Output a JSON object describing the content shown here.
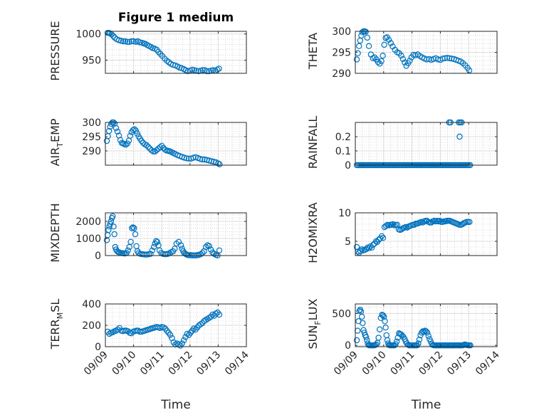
{
  "figure": {
    "title": "Figure 1 medium",
    "xlabel": "Time",
    "xtick_labels": [
      "09/09",
      "09/10",
      "09/11",
      "09/12",
      "09/13",
      "09/14"
    ],
    "marker_color": "#0072BD",
    "grid": "on (major and minor)"
  },
  "chart_data": [
    {
      "type": "scatter",
      "ylabel": "PRESSURE",
      "xlim": [
        0,
        5
      ],
      "ylim": [
        925,
        1005
      ],
      "yticks": [
        950,
        1000
      ],
      "ytick_labels": [
        "950",
        "1000"
      ],
      "x": [
        0.08,
        0.12,
        0.17,
        0.22,
        0.28,
        0.33,
        0.4,
        0.48,
        0.56,
        0.63,
        0.7,
        0.78,
        0.85,
        0.93,
        1.0,
        1.08,
        1.15,
        1.22,
        1.3,
        1.36,
        1.42,
        1.48,
        1.55,
        1.62,
        1.68,
        1.75,
        1.82,
        1.88,
        1.95,
        2.02,
        2.1,
        2.18,
        2.25,
        2.32,
        2.4,
        2.48,
        2.56,
        2.63,
        2.7,
        2.78,
        2.85,
        2.92,
        3.0,
        3.08,
        3.15,
        3.22,
        3.3,
        3.38,
        3.45,
        3.52,
        3.6,
        3.68,
        3.75,
        3.82,
        3.9,
        3.97,
        4.03
      ],
      "y": [
        1002,
        1002,
        1001,
        999,
        996,
        993,
        990,
        988,
        987,
        986,
        986,
        985,
        985,
        986,
        986,
        985,
        986,
        984,
        983,
        982,
        981,
        979,
        977,
        975,
        973,
        972,
        970,
        966,
        962,
        958,
        953,
        949,
        946,
        943,
        941,
        940,
        938,
        936,
        935,
        933,
        931,
        929,
        930,
        932,
        931,
        930,
        929,
        930,
        931,
        931,
        929,
        929,
        930,
        931,
        930,
        932,
        934
      ]
    },
    {
      "type": "scatter",
      "ylabel": "THETA",
      "xlim": [
        0,
        5
      ],
      "ylim": [
        290,
        300
      ],
      "yticks": [
        290,
        295,
        300
      ],
      "ytick_labels": [
        "290",
        "295",
        "300"
      ],
      "x": [
        0.05,
        0.09,
        0.13,
        0.17,
        0.21,
        0.25,
        0.29,
        0.33,
        0.37,
        0.42,
        0.48,
        0.55,
        0.62,
        0.68,
        0.74,
        0.8,
        0.86,
        0.92,
        0.97,
        1.02,
        1.07,
        1.12,
        1.18,
        1.25,
        1.32,
        1.4,
        1.48,
        1.55,
        1.62,
        1.68,
        1.74,
        1.8,
        1.86,
        1.92,
        1.98,
        2.05,
        2.12,
        2.2,
        2.28,
        2.36,
        2.44,
        2.52,
        2.6,
        2.68,
        2.76,
        2.84,
        2.92,
        3.0,
        3.08,
        3.16,
        3.24,
        3.32,
        3.4,
        3.48,
        3.56,
        3.64,
        3.72,
        3.8,
        3.88,
        3.96,
        4.02
      ],
      "y": [
        293.3,
        294.8,
        296.5,
        297.8,
        299,
        299.8,
        300,
        300,
        299.9,
        298.5,
        296.5,
        294.5,
        293.6,
        293.8,
        293.3,
        292.7,
        292.3,
        292.9,
        294.2,
        296.8,
        298.4,
        298.6,
        298.0,
        297.2,
        296.4,
        295.6,
        295.0,
        294.8,
        294.2,
        293.4,
        292.6,
        291.8,
        292.4,
        293.0,
        293.8,
        294.4,
        294.3,
        294.5,
        294.1,
        293.8,
        293.5,
        293.3,
        293.4,
        293.2,
        293.4,
        293.6,
        293.3,
        293.2,
        293.5,
        293.6,
        293.7,
        293.6,
        293.5,
        293.4,
        293.2,
        293.0,
        292.8,
        292.4,
        291.9,
        291.3,
        290.7
      ]
    },
    {
      "type": "scatter",
      "ylabel": "AIR_TEMP",
      "xlim": [
        0,
        5
      ],
      "ylim": [
        285,
        300
      ],
      "yticks": [
        290,
        295,
        300
      ],
      "ytick_labels": [
        "290",
        "295",
        "300"
      ],
      "x": [
        0.05,
        0.09,
        0.13,
        0.17,
        0.21,
        0.25,
        0.29,
        0.33,
        0.38,
        0.43,
        0.48,
        0.53,
        0.58,
        0.63,
        0.68,
        0.73,
        0.78,
        0.83,
        0.88,
        0.93,
        0.98,
        1.03,
        1.08,
        1.13,
        1.18,
        1.23,
        1.28,
        1.34,
        1.4,
        1.46,
        1.52,
        1.58,
        1.64,
        1.7,
        1.76,
        1.82,
        1.88,
        1.94,
        2.0,
        2.06,
        2.12,
        2.18,
        2.24,
        2.3,
        2.36,
        2.42,
        2.48,
        2.56,
        2.64,
        2.72,
        2.8,
        2.88,
        2.96,
        3.04,
        3.12,
        3.2,
        3.28,
        3.36,
        3.44,
        3.52,
        3.6,
        3.68,
        3.76,
        3.84,
        3.92,
        4.0,
        4.05
      ],
      "y": [
        293.5,
        295.2,
        297,
        298.5,
        299.5,
        300,
        300,
        299.6,
        298,
        296.8,
        295.4,
        293.8,
        292.8,
        292.6,
        292.3,
        292.2,
        292.6,
        293.6,
        295.3,
        296.6,
        297.3,
        297.6,
        297.1,
        296.1,
        295.1,
        294.3,
        293.5,
        292.8,
        292.3,
        292.0,
        291.4,
        290.8,
        290.2,
        289.8,
        289.8,
        290.3,
        290.8,
        291.3,
        291.8,
        291.0,
        290.4,
        290.1,
        290.0,
        289.8,
        289.5,
        289.2,
        288.9,
        288.5,
        288.2,
        287.9,
        287.6,
        287.4,
        287.3,
        287.3,
        287.6,
        287.8,
        287.5,
        287.2,
        287.0,
        287.0,
        286.8,
        286.6,
        286.4,
        286.2,
        286.0,
        285.6,
        285.3
      ]
    },
    {
      "type": "scatter",
      "ylabel": "RAINFALL",
      "xlim": [
        0,
        5
      ],
      "ylim": [
        0,
        0.3
      ],
      "yticks": [
        0,
        0.1,
        0.2
      ],
      "ytick_labels": [
        "0",
        "0.1",
        "0.2"
      ],
      "x": [
        0.05,
        0.1,
        0.15,
        0.2,
        0.25,
        0.3,
        0.35,
        0.4,
        0.45,
        0.5,
        0.55,
        0.6,
        0.65,
        0.7,
        0.75,
        0.8,
        0.85,
        0.9,
        0.95,
        1.0,
        1.05,
        1.1,
        1.15,
        1.2,
        1.25,
        1.3,
        1.35,
        1.4,
        1.45,
        1.5,
        1.55,
        1.6,
        1.65,
        1.7,
        1.75,
        1.8,
        1.85,
        1.9,
        1.95,
        2.0,
        2.05,
        2.1,
        2.15,
        2.2,
        2.25,
        2.3,
        2.35,
        2.4,
        2.45,
        2.5,
        2.55,
        2.6,
        2.65,
        2.7,
        2.75,
        2.8,
        2.85,
        2.9,
        2.95,
        3.0,
        3.05,
        3.1,
        3.15,
        3.2,
        3.25,
        3.3,
        3.35,
        3.4,
        3.45,
        3.5,
        3.55,
        3.6,
        3.65,
        3.7,
        3.75,
        3.8,
        3.85,
        3.9,
        3.95,
        4.0,
        4.05,
        3.31,
        3.36,
        3.65,
        3.7,
        3.75,
        3.68
      ],
      "y": [
        0,
        0,
        0,
        0,
        0,
        0,
        0,
        0,
        0,
        0,
        0,
        0,
        0,
        0,
        0,
        0,
        0,
        0,
        0,
        0,
        0,
        0,
        0,
        0,
        0,
        0,
        0,
        0,
        0,
        0,
        0,
        0,
        0,
        0,
        0,
        0,
        0,
        0,
        0,
        0,
        0,
        0,
        0,
        0,
        0,
        0,
        0,
        0,
        0,
        0,
        0,
        0,
        0,
        0,
        0,
        0,
        0,
        0,
        0,
        0,
        0,
        0,
        0,
        0,
        0,
        0,
        0,
        0,
        0,
        0,
        0,
        0,
        0,
        0,
        0,
        0,
        0,
        0,
        0,
        0,
        0,
        0.3,
        0.3,
        0.3,
        0.3,
        0.3,
        0.2
      ]
    },
    {
      "type": "scatter",
      "ylabel": "MIXDEPTH",
      "xlim": [
        0,
        5
      ],
      "ylim": [
        0,
        2500
      ],
      "yticks": [
        0,
        1000,
        2000
      ],
      "ytick_labels": [
        "0",
        "1000",
        "2000"
      ],
      "x": [
        0.05,
        0.08,
        0.11,
        0.14,
        0.17,
        0.2,
        0.23,
        0.26,
        0.29,
        0.32,
        0.35,
        0.38,
        0.42,
        0.46,
        0.5,
        0.55,
        0.6,
        0.65,
        0.7,
        0.75,
        0.8,
        0.85,
        0.9,
        0.94,
        0.98,
        1.02,
        1.06,
        1.1,
        1.14,
        1.18,
        1.24,
        1.3,
        1.36,
        1.42,
        1.48,
        1.54,
        1.6,
        1.66,
        1.72,
        1.76,
        1.8,
        1.84,
        1.88,
        1.92,
        1.98,
        2.04,
        2.1,
        2.16,
        2.22,
        2.28,
        2.34,
        2.4,
        2.46,
        2.52,
        2.6,
        2.68,
        2.72,
        2.76,
        2.8,
        2.84,
        2.88,
        2.92,
        2.96,
        3.02,
        3.08,
        3.14,
        3.2,
        3.26,
        3.32,
        3.38,
        3.44,
        3.5,
        3.56,
        3.62,
        3.68,
        3.74,
        3.8,
        3.86,
        3.92,
        3.98,
        4.04
      ],
      "y": [
        900,
        1200,
        1500,
        1700,
        1850,
        2000,
        2200,
        2300,
        1700,
        1250,
        500,
        350,
        250,
        200,
        180,
        150,
        140,
        130,
        120,
        150,
        300,
        500,
        800,
        1600,
        1650,
        1600,
        1250,
        550,
        250,
        150,
        100,
        80,
        70,
        60,
        60,
        80,
        100,
        300,
        500,
        700,
        850,
        800,
        600,
        300,
        150,
        100,
        80,
        80,
        100,
        150,
        200,
        250,
        400,
        700,
        800,
        600,
        400,
        250,
        150,
        100,
        60,
        30,
        20,
        20,
        10,
        10,
        10,
        20,
        40,
        80,
        150,
        250,
        500,
        600,
        550,
        350,
        180,
        100,
        40,
        10,
        300
      ]
    },
    {
      "type": "scatter",
      "ylabel": "H2OMIXRA",
      "xlim": [
        0,
        5
      ],
      "ylim": [
        2.5,
        10
      ],
      "yticks": [
        5,
        10
      ],
      "ytick_labels": [
        "5",
        "10"
      ],
      "x": [
        0.05,
        0.09,
        0.13,
        0.18,
        0.23,
        0.28,
        0.33,
        0.38,
        0.43,
        0.48,
        0.53,
        0.58,
        0.63,
        0.68,
        0.73,
        0.78,
        0.83,
        0.88,
        0.93,
        0.98,
        1.03,
        1.08,
        1.13,
        1.18,
        1.23,
        1.28,
        1.33,
        1.38,
        1.43,
        1.48,
        1.53,
        1.58,
        1.63,
        1.68,
        1.73,
        1.78,
        1.83,
        1.88,
        1.93,
        1.98,
        2.03,
        2.08,
        2.13,
        2.18,
        2.23,
        2.28,
        2.33,
        2.38,
        2.43,
        2.48,
        2.53,
        2.58,
        2.63,
        2.68,
        2.73,
        2.78,
        2.83,
        2.88,
        2.93,
        2.98,
        3.03,
        3.08,
        3.13,
        3.18,
        3.23,
        3.28,
        3.33,
        3.38,
        3.43,
        3.48,
        3.53,
        3.58,
        3.63,
        3.68,
        3.73,
        3.78,
        3.83,
        3.88,
        3.93,
        3.98,
        4.03
      ],
      "y": [
        4.0,
        3.2,
        3.0,
        3.3,
        3.6,
        3.4,
        3.5,
        3.6,
        3.9,
        3.8,
        4.1,
        3.9,
        4.4,
        4.6,
        5.0,
        4.9,
        5.3,
        5.5,
        5.9,
        5.6,
        7.5,
        7.7,
        7.9,
        7.8,
        7.9,
        7.9,
        8.0,
        7.8,
        7.9,
        7.9,
        7.1,
        7.0,
        7.1,
        7.3,
        7.4,
        7.5,
        7.4,
        7.6,
        7.7,
        7.8,
        7.9,
        7.9,
        8.1,
        8.1,
        8.2,
        8.3,
        8.4,
        8.3,
        8.5,
        8.6,
        8.6,
        8.4,
        8.3,
        8.3,
        8.5,
        8.6,
        8.5,
        8.6,
        8.5,
        8.6,
        8.4,
        8.4,
        8.5,
        8.5,
        8.6,
        8.6,
        8.6,
        8.5,
        8.4,
        8.3,
        8.2,
        8.1,
        8.0,
        7.9,
        7.9,
        8.0,
        8.2,
        8.3,
        8.4,
        8.4,
        8.4
      ]
    },
    {
      "type": "scatter",
      "ylabel": "TERR_MSL",
      "xlim": [
        0,
        5
      ],
      "ylim": [
        0,
        400
      ],
      "yticks": [
        0,
        200,
        400
      ],
      "ytick_labels": [
        "0",
        "200",
        "400"
      ],
      "x": [
        0.08,
        0.14,
        0.2,
        0.26,
        0.32,
        0.38,
        0.44,
        0.5,
        0.56,
        0.62,
        0.68,
        0.74,
        0.8,
        0.86,
        0.92,
        0.98,
        1.04,
        1.1,
        1.16,
        1.22,
        1.28,
        1.34,
        1.4,
        1.46,
        1.52,
        1.58,
        1.64,
        1.7,
        1.76,
        1.82,
        1.88,
        1.94,
        2.0,
        2.06,
        2.12,
        2.18,
        2.24,
        2.3,
        2.36,
        2.42,
        2.48,
        2.54,
        2.6,
        2.66,
        2.72,
        2.78,
        2.84,
        2.9,
        2.96,
        3.02,
        3.08,
        3.14,
        3.2,
        3.26,
        3.32,
        3.38,
        3.44,
        3.5,
        3.56,
        3.62,
        3.68,
        3.74,
        3.8,
        3.86,
        3.92,
        3.98,
        4.04
      ],
      "y": [
        140,
        120,
        130,
        135,
        145,
        150,
        160,
        175,
        150,
        145,
        150,
        150,
        145,
        130,
        125,
        140,
        145,
        150,
        150,
        140,
        140,
        145,
        150,
        155,
        160,
        165,
        170,
        175,
        180,
        185,
        180,
        175,
        185,
        180,
        170,
        150,
        130,
        110,
        80,
        40,
        20,
        30,
        20,
        10,
        30,
        60,
        90,
        120,
        110,
        130,
        150,
        170,
        160,
        180,
        200,
        210,
        220,
        240,
        250,
        260,
        270,
        280,
        300,
        290,
        310,
        320,
        300
      ]
    },
    {
      "type": "scatter",
      "ylabel": "SUN_FLUX",
      "xlim": [
        0,
        5
      ],
      "ylim": [
        -20,
        650
      ],
      "yticks": [
        0,
        500
      ],
      "ytick_labels": [
        "0",
        "500"
      ],
      "x": [
        0.05,
        0.08,
        0.11,
        0.14,
        0.17,
        0.2,
        0.23,
        0.26,
        0.29,
        0.32,
        0.35,
        0.38,
        0.41,
        0.44,
        0.47,
        0.5,
        0.54,
        0.58,
        0.62,
        0.66,
        0.7,
        0.74,
        0.78,
        0.82,
        0.86,
        0.9,
        0.94,
        0.98,
        1.01,
        1.04,
        1.07,
        1.1,
        1.13,
        1.16,
        1.19,
        1.22,
        1.26,
        1.3,
        1.34,
        1.38,
        1.42,
        1.46,
        1.5,
        1.54,
        1.58,
        1.62,
        1.66,
        1.7,
        1.74,
        1.78,
        1.82,
        1.86,
        1.9,
        1.94,
        1.98,
        2.02,
        2.06,
        2.1,
        2.14,
        2.18,
        2.22,
        2.26,
        2.3,
        2.34,
        2.38,
        2.42,
        2.46,
        2.5,
        2.54,
        2.58,
        2.62,
        2.66,
        2.7,
        2.74,
        2.78,
        2.82,
        2.86,
        2.9,
        2.94,
        2.98,
        3.02,
        3.06,
        3.1,
        3.14,
        3.18,
        3.22,
        3.26,
        3.3,
        3.34,
        3.38,
        3.42,
        3.46,
        3.5,
        3.54,
        3.58,
        3.62,
        3.66,
        3.7,
        3.74,
        3.78,
        3.82,
        3.86,
        3.9,
        3.94,
        3.98,
        4.02,
        4.06
      ],
      "y": [
        80,
        230,
        380,
        540,
        560,
        530,
        450,
        350,
        240,
        200,
        160,
        130,
        80,
        30,
        5,
        0,
        0,
        0,
        0,
        0,
        5,
        15,
        40,
        120,
        250,
        430,
        480,
        470,
        450,
        380,
        280,
        160,
        80,
        30,
        5,
        0,
        0,
        0,
        0,
        0,
        20,
        60,
        120,
        190,
        180,
        170,
        150,
        130,
        100,
        60,
        30,
        10,
        0,
        0,
        0,
        0,
        0,
        0,
        0,
        0,
        30,
        90,
        160,
        200,
        220,
        210,
        230,
        220,
        200,
        150,
        100,
        60,
        20,
        5,
        0,
        0,
        0,
        0,
        0,
        0,
        0,
        0,
        0,
        0,
        0,
        0,
        0,
        0,
        0,
        0,
        0,
        0,
        0,
        0,
        0,
        0,
        0,
        0,
        0,
        0,
        5,
        15,
        10,
        5,
        0,
        0,
        0
      ]
    }
  ]
}
